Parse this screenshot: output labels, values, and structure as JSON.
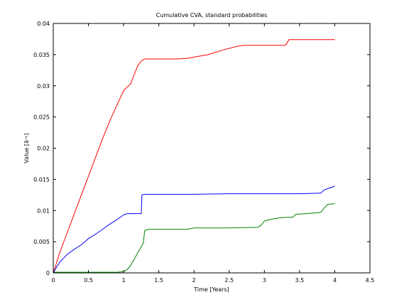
{
  "chart_data": {
    "type": "line",
    "title": "Cumulative CVA, standard probabilities",
    "xlabel": "Time [Years]",
    "ylabel": "Value [ã¬]",
    "xlim": [
      0,
      4.5
    ],
    "ylim": [
      0,
      0.04
    ],
    "xticks": [
      "0",
      "0.5",
      "1",
      "1.5",
      "2",
      "2.5",
      "3",
      "3.5",
      "4",
      "4.5"
    ],
    "yticks": [
      "0",
      "0.005",
      "0.01",
      "0.015",
      "0.02",
      "0.025",
      "0.03",
      "0.035",
      "0.04"
    ],
    "grid": false,
    "series": [
      {
        "color": "#ff0000",
        "x": [
          0,
          0.1,
          0.2,
          0.3,
          0.4,
          0.5,
          0.6,
          0.7,
          0.8,
          0.9,
          1.0,
          1.05,
          1.1,
          1.15,
          1.2,
          1.25,
          1.3,
          1.35,
          1.5,
          1.75,
          1.9,
          2.0,
          2.2,
          2.4,
          2.6,
          2.7,
          2.9,
          3.1,
          3.3,
          3.35,
          3.6,
          3.8,
          4.0
        ],
        "y": [
          0,
          0.0035,
          0.0065,
          0.0095,
          0.0125,
          0.0155,
          0.0185,
          0.0215,
          0.0243,
          0.0268,
          0.0292,
          0.0298,
          0.0303,
          0.0318,
          0.0332,
          0.034,
          0.0343,
          0.0343,
          0.0343,
          0.0343,
          0.0344,
          0.0346,
          0.035,
          0.0357,
          0.0363,
          0.0365,
          0.0365,
          0.0365,
          0.0365,
          0.0374,
          0.0374,
          0.0374,
          0.0374
        ]
      },
      {
        "color": "#0000ff",
        "x": [
          0,
          0.05,
          0.1,
          0.2,
          0.3,
          0.4,
          0.5,
          0.6,
          0.7,
          0.8,
          0.9,
          1.0,
          1.05,
          1.2,
          1.25,
          1.26,
          1.3,
          1.5,
          1.8,
          2.0,
          2.5,
          3.0,
          3.5,
          3.8,
          3.85,
          3.9,
          4.0
        ],
        "y": [
          0,
          0.001,
          0.0018,
          0.003,
          0.0038,
          0.0045,
          0.0055,
          0.0062,
          0.007,
          0.0078,
          0.0085,
          0.0093,
          0.0095,
          0.0095,
          0.0095,
          0.0125,
          0.0126,
          0.0126,
          0.0126,
          0.0126,
          0.0127,
          0.0127,
          0.0127,
          0.0128,
          0.0133,
          0.0135,
          0.0139
        ]
      },
      {
        "color": "#008000",
        "x": [
          0,
          0.5,
          0.9,
          1.0,
          1.05,
          1.1,
          1.15,
          1.2,
          1.25,
          1.28,
          1.3,
          1.35,
          1.6,
          1.9,
          2.0,
          2.5,
          2.9,
          2.95,
          3.0,
          3.1,
          3.2,
          3.3,
          3.4,
          3.45,
          3.6,
          3.8,
          3.85,
          3.9,
          4.0
        ],
        "y": [
          0.0001,
          0.0001,
          0.0001,
          0.0002,
          0.0005,
          0.0012,
          0.0022,
          0.0032,
          0.0042,
          0.0048,
          0.0068,
          0.007,
          0.007,
          0.007,
          0.0072,
          0.0072,
          0.0073,
          0.0076,
          0.0083,
          0.0086,
          0.0088,
          0.0089,
          0.0089,
          0.0094,
          0.0095,
          0.0097,
          0.0104,
          0.011,
          0.0111
        ]
      }
    ]
  }
}
